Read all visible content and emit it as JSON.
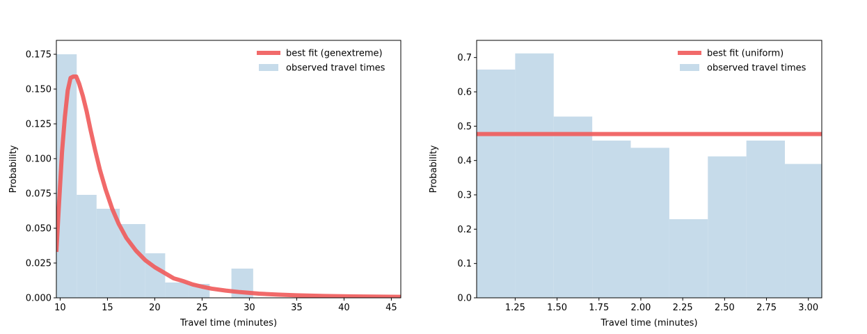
{
  "colors": {
    "bar": "#c6dbea",
    "fit_line": "#ef5a5a",
    "axes": "#000000",
    "background": "#ffffff"
  },
  "chart_data": [
    {
      "type": "bar",
      "subtype": "histogram-with-fit",
      "xlabel": "Travel time (minutes)",
      "ylabel": "Probability",
      "xlim": [
        9.6,
        46
      ],
      "ylim": [
        0,
        0.185
      ],
      "xticks": [
        10,
        15,
        20,
        25,
        30,
        35,
        40,
        45
      ],
      "xtick_labels": [
        "10",
        "15",
        "20",
        "25",
        "30",
        "35",
        "40",
        "45"
      ],
      "yticks": [
        0,
        0.025,
        0.05,
        0.075,
        0.1,
        0.125,
        0.15,
        0.175
      ],
      "ytick_labels": [
        "0.000",
        "0.025",
        "0.050",
        "0.075",
        "0.100",
        "0.125",
        "0.150",
        "0.175"
      ],
      "grid": false,
      "legend": {
        "position": "top-right",
        "entries": [
          {
            "label": "best fit (genextreme)",
            "kind": "line"
          },
          {
            "label": "observed travel times",
            "kind": "patch"
          }
        ]
      },
      "series": [
        {
          "name": "observed travel times",
          "kind": "histogram",
          "bins": [
            {
              "x0": 9.6,
              "x1": 11.75,
              "y": 0.175
            },
            {
              "x0": 11.75,
              "x1": 13.85,
              "y": 0.074
            },
            {
              "x0": 13.85,
              "x1": 16.3,
              "y": 0.064
            },
            {
              "x0": 16.3,
              "x1": 19.0,
              "y": 0.053
            },
            {
              "x0": 19.0,
              "x1": 21.1,
              "y": 0.032
            },
            {
              "x0": 21.1,
              "x1": 23.5,
              "y": 0.011
            },
            {
              "x0": 23.5,
              "x1": 25.8,
              "y": 0.01
            },
            {
              "x0": 25.8,
              "x1": 28.1,
              "y": 0.0
            },
            {
              "x0": 28.1,
              "x1": 30.4,
              "y": 0.021
            }
          ]
        },
        {
          "name": "best fit (genextreme)",
          "kind": "line",
          "x": [
            9.6,
            9.9,
            10.2,
            10.5,
            10.8,
            11.1,
            11.4,
            11.7,
            12.0,
            12.4,
            12.8,
            13.2,
            13.7,
            14.2,
            14.8,
            15.5,
            16.2,
            17.0,
            18.0,
            19.0,
            20.0,
            21.0,
            22.0,
            23.0,
            24.0,
            25.0,
            26.0,
            27.5,
            29.0,
            31.0,
            33.0,
            35.0,
            38.0,
            41.0,
            44.0,
            46.0
          ],
          "y": [
            0.033,
            0.07,
            0.105,
            0.13,
            0.149,
            0.158,
            0.159,
            0.159,
            0.154,
            0.145,
            0.134,
            0.121,
            0.106,
            0.092,
            0.078,
            0.064,
            0.053,
            0.043,
            0.034,
            0.027,
            0.022,
            0.018,
            0.014,
            0.012,
            0.0096,
            0.008,
            0.0066,
            0.0052,
            0.0041,
            0.003,
            0.0023,
            0.0018,
            0.0013,
            0.001,
            0.0008,
            0.0007
          ]
        }
      ]
    },
    {
      "type": "bar",
      "subtype": "histogram-with-fit",
      "xlabel": "Travel time (minutes)",
      "ylabel": "Probability",
      "xlim": [
        1.02,
        3.08
      ],
      "ylim": [
        0,
        0.75
      ],
      "xticks": [
        1.25,
        1.5,
        1.75,
        2.0,
        2.25,
        2.5,
        2.75,
        3.0
      ],
      "xtick_labels": [
        "1.25",
        "1.50",
        "1.75",
        "2.00",
        "2.25",
        "2.50",
        "2.75",
        "3.00"
      ],
      "yticks": [
        0,
        0.1,
        0.2,
        0.3,
        0.4,
        0.5,
        0.6,
        0.7
      ],
      "ytick_labels": [
        "0.0",
        "0.1",
        "0.2",
        "0.3",
        "0.4",
        "0.5",
        "0.6",
        "0.7"
      ],
      "grid": false,
      "legend": {
        "position": "top-right",
        "entries": [
          {
            "label": "best fit (uniform)",
            "kind": "line"
          },
          {
            "label": "observed travel times",
            "kind": "patch"
          }
        ]
      },
      "series": [
        {
          "name": "observed travel times",
          "kind": "histogram",
          "bins": [
            {
              "x0": 1.02,
              "x1": 1.25,
              "y": 0.665
            },
            {
              "x0": 1.25,
              "x1": 1.48,
              "y": 0.712
            },
            {
              "x0": 1.48,
              "x1": 1.71,
              "y": 0.528
            },
            {
              "x0": 1.71,
              "x1": 1.94,
              "y": 0.458
            },
            {
              "x0": 1.94,
              "x1": 2.17,
              "y": 0.437
            },
            {
              "x0": 2.17,
              "x1": 2.4,
              "y": 0.229
            },
            {
              "x0": 2.4,
              "x1": 2.63,
              "y": 0.412
            },
            {
              "x0": 2.63,
              "x1": 2.86,
              "y": 0.458
            },
            {
              "x0": 2.86,
              "x1": 3.08,
              "y": 0.39
            }
          ]
        },
        {
          "name": "best fit (uniform)",
          "kind": "line",
          "x": [
            1.02,
            3.08
          ],
          "y": [
            0.477,
            0.477
          ]
        }
      ]
    }
  ]
}
